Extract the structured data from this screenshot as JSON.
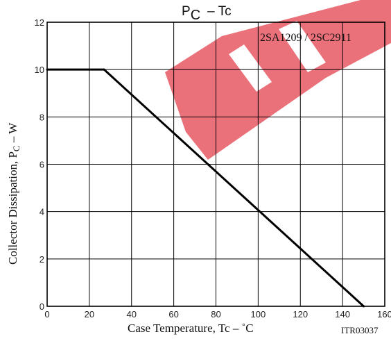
{
  "colors": {
    "watermark": "#e8616a",
    "line": "#000000"
  },
  "chart_data": {
    "type": "line",
    "title_main": "P",
    "title_sub": "C",
    "title_rest": "–  Tc",
    "xlabel": "Case Temperature, Tc  –  ˚C",
    "ylabel": "Collector Dissipation, P",
    "ylabel_sub": "C",
    "ylabel_rest": "  –  W",
    "annotation": "2SA1209 / 2SC2911",
    "figure_code": "ITR03037",
    "xlim": [
      0,
      160
    ],
    "ylim": [
      0,
      12
    ],
    "x_ticks": [
      0,
      20,
      40,
      60,
      80,
      100,
      120,
      140,
      160
    ],
    "y_ticks": [
      0,
      2,
      4,
      6,
      8,
      10,
      12
    ],
    "grid": true,
    "series": [
      {
        "x": [
          0,
          27,
          150
        ],
        "y": [
          10,
          10,
          0
        ]
      }
    ]
  }
}
